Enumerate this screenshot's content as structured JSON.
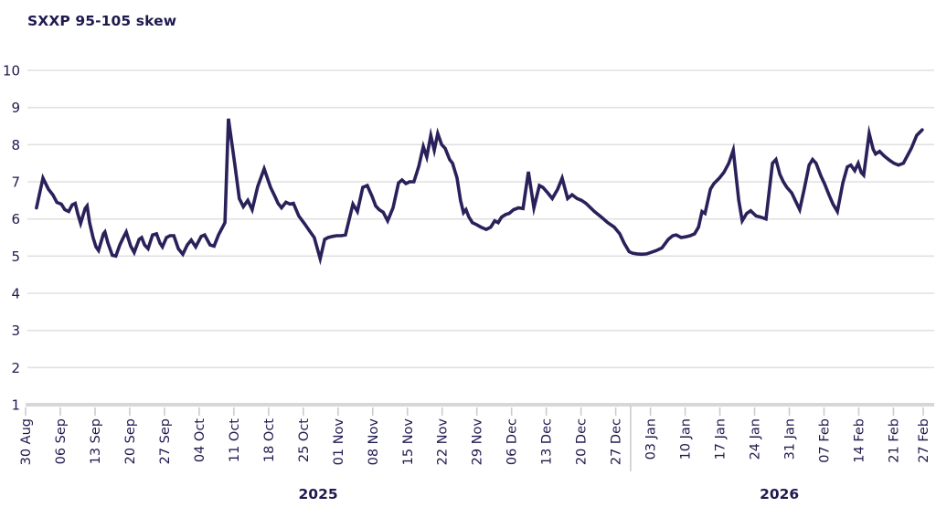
{
  "title": "SXXP 95-105 skew",
  "colors": {
    "line": "#29215A",
    "text": "#1F1A4E",
    "gridline": "#E1E1E1",
    "baseline": "#D7D7D7",
    "tick": "#CCCCCC"
  },
  "chart_data": {
    "type": "line",
    "title": "SXXP 95-105 skew",
    "series_name": "SXXP 95-105 skew",
    "legend": "none",
    "grid": "horizontal",
    "ylim": [
      1,
      10
    ],
    "ytick_labels": [
      "1",
      "2",
      "3",
      "4",
      "5",
      "6",
      "7",
      "8",
      "9",
      "10"
    ],
    "yticks": [
      1,
      2,
      3,
      4,
      5,
      6,
      7,
      8,
      9,
      10
    ],
    "x_unit": "days since 30 Aug 2025",
    "x_range_days": [
      0,
      181
    ],
    "x_tick_labels": [
      "30 Aug",
      "06 Sep",
      "13 Sep",
      "20 Sep",
      "27 Sep",
      "04 Oct",
      "11 Oct",
      "18 Oct",
      "25 Oct",
      "01 Nov",
      "08 Nov",
      "15 Nov",
      "22 Nov",
      "29 Nov",
      "06 Dec",
      "13 Dec",
      "20 Dec",
      "27 Dec",
      "03 Jan",
      "10 Jan",
      "17 Jan",
      "24 Jan",
      "31 Jan",
      "07 Feb",
      "14 Feb",
      "21 Feb",
      "27 Feb"
    ],
    "x_tick_days": [
      0,
      7,
      14,
      21,
      28,
      35,
      42,
      49,
      56,
      63,
      70,
      77,
      84,
      91,
      98,
      105,
      112,
      119,
      126,
      133,
      140,
      147,
      154,
      161,
      168,
      175,
      181
    ],
    "year_labels": [
      {
        "label": "2025",
        "day_center": 59
      },
      {
        "label": "2026",
        "day_center": 152
      }
    ],
    "year_divider_day": 122,
    "points": [
      [
        2.2,
        6.3
      ],
      [
        3.5,
        7.1
      ],
      [
        4.6,
        6.8
      ],
      [
        5.5,
        6.65
      ],
      [
        6.3,
        6.45
      ],
      [
        7.2,
        6.4
      ],
      [
        7.9,
        6.25
      ],
      [
        8.7,
        6.2
      ],
      [
        9.4,
        6.38
      ],
      [
        10,
        6.42
      ],
      [
        10.5,
        6.15
      ],
      [
        11.1,
        5.88
      ],
      [
        12,
        6.28
      ],
      [
        12.4,
        6.35
      ],
      [
        12.9,
        5.9
      ],
      [
        13.6,
        5.5
      ],
      [
        14.2,
        5.25
      ],
      [
        14.7,
        5.15
      ],
      [
        15.7,
        5.6
      ],
      [
        16,
        5.65
      ],
      [
        16.6,
        5.35
      ],
      [
        17.5,
        5.02
      ],
      [
        18.2,
        5.0
      ],
      [
        19,
        5.3
      ],
      [
        19.7,
        5.5
      ],
      [
        20.3,
        5.65
      ],
      [
        21.2,
        5.27
      ],
      [
        21.9,
        5.1
      ],
      [
        22.9,
        5.45
      ],
      [
        23.4,
        5.5
      ],
      [
        24,
        5.3
      ],
      [
        24.7,
        5.2
      ],
      [
        25.6,
        5.57
      ],
      [
        26.4,
        5.6
      ],
      [
        27.1,
        5.35
      ],
      [
        27.6,
        5.25
      ],
      [
        28.4,
        5.5
      ],
      [
        29.1,
        5.55
      ],
      [
        29.9,
        5.55
      ],
      [
        30.8,
        5.2
      ],
      [
        31.7,
        5.05
      ],
      [
        32.6,
        5.3
      ],
      [
        33.4,
        5.43
      ],
      [
        34.3,
        5.25
      ],
      [
        35.4,
        5.53
      ],
      [
        36.1,
        5.57
      ],
      [
        37.2,
        5.3
      ],
      [
        38,
        5.27
      ],
      [
        38.9,
        5.57
      ],
      [
        39.4,
        5.7
      ],
      [
        40.2,
        5.9
      ],
      [
        40.9,
        8.7
      ],
      [
        42.2,
        7.45
      ],
      [
        43.1,
        6.55
      ],
      [
        43.9,
        6.33
      ],
      [
        44.8,
        6.5
      ],
      [
        45.7,
        6.25
      ],
      [
        46.8,
        6.87
      ],
      [
        48.1,
        7.35
      ],
      [
        49.4,
        6.85
      ],
      [
        50.3,
        6.6
      ],
      [
        50.9,
        6.42
      ],
      [
        51.6,
        6.3
      ],
      [
        52.5,
        6.45
      ],
      [
        53.3,
        6.4
      ],
      [
        54,
        6.42
      ],
      [
        55.1,
        6.08
      ],
      [
        56.2,
        5.88
      ],
      [
        57.3,
        5.67
      ],
      [
        58.2,
        5.5
      ],
      [
        59.4,
        4.93
      ],
      [
        60.3,
        5.45
      ],
      [
        61,
        5.5
      ],
      [
        61.9,
        5.53
      ],
      [
        62.7,
        5.55
      ],
      [
        63.6,
        5.55
      ],
      [
        64.5,
        5.57
      ],
      [
        66,
        6.4
      ],
      [
        66.9,
        6.2
      ],
      [
        68,
        6.85
      ],
      [
        68.9,
        6.9
      ],
      [
        69.9,
        6.6
      ],
      [
        70.6,
        6.35
      ],
      [
        71.3,
        6.25
      ],
      [
        72.1,
        6.18
      ],
      [
        73,
        5.95
      ],
      [
        74.1,
        6.3
      ],
      [
        75.2,
        6.97
      ],
      [
        75.9,
        7.05
      ],
      [
        76.7,
        6.95
      ],
      [
        77.4,
        7.0
      ],
      [
        78.3,
        7.0
      ],
      [
        79.3,
        7.42
      ],
      [
        80.2,
        7.95
      ],
      [
        80.9,
        7.67
      ],
      [
        81.7,
        8.25
      ],
      [
        82.4,
        7.85
      ],
      [
        83.1,
        8.3
      ],
      [
        83.9,
        8.0
      ],
      [
        84.6,
        7.9
      ],
      [
        85.5,
        7.6
      ],
      [
        86.1,
        7.5
      ],
      [
        87,
        7.1
      ],
      [
        87.7,
        6.5
      ],
      [
        88.3,
        6.17
      ],
      [
        88.8,
        6.25
      ],
      [
        89.4,
        6.05
      ],
      [
        90.1,
        5.9
      ],
      [
        90.9,
        5.85
      ],
      [
        91.8,
        5.78
      ],
      [
        92.9,
        5.72
      ],
      [
        93.8,
        5.78
      ],
      [
        94.6,
        5.95
      ],
      [
        95.3,
        5.9
      ],
      [
        96,
        6.05
      ],
      [
        96.8,
        6.12
      ],
      [
        97.5,
        6.15
      ],
      [
        98.4,
        6.25
      ],
      [
        99.4,
        6.3
      ],
      [
        100.3,
        6.28
      ],
      [
        101.4,
        7.27
      ],
      [
        102.5,
        6.3
      ],
      [
        103.6,
        6.9
      ],
      [
        104.3,
        6.85
      ],
      [
        105.3,
        6.7
      ],
      [
        106.2,
        6.55
      ],
      [
        107.3,
        6.8
      ],
      [
        108.2,
        7.1
      ],
      [
        109.3,
        6.55
      ],
      [
        110.2,
        6.65
      ],
      [
        111.2,
        6.55
      ],
      [
        112.1,
        6.5
      ],
      [
        113,
        6.42
      ],
      [
        114.7,
        6.2
      ],
      [
        116.1,
        6.05
      ],
      [
        117.4,
        5.9
      ],
      [
        118.7,
        5.78
      ],
      [
        119.8,
        5.6
      ],
      [
        120.7,
        5.35
      ],
      [
        121.7,
        5.12
      ],
      [
        122.4,
        5.08
      ],
      [
        123.3,
        5.06
      ],
      [
        124.2,
        5.05
      ],
      [
        125.2,
        5.06
      ],
      [
        126.1,
        5.1
      ],
      [
        127.2,
        5.15
      ],
      [
        128.3,
        5.22
      ],
      [
        129.6,
        5.45
      ],
      [
        130.5,
        5.55
      ],
      [
        131.2,
        5.57
      ],
      [
        132.2,
        5.5
      ],
      [
        133.1,
        5.52
      ],
      [
        134,
        5.55
      ],
      [
        134.9,
        5.6
      ],
      [
        135.7,
        5.78
      ],
      [
        136.4,
        6.2
      ],
      [
        137,
        6.15
      ],
      [
        138.1,
        6.8
      ],
      [
        138.8,
        6.95
      ],
      [
        139.9,
        7.1
      ],
      [
        140.8,
        7.25
      ],
      [
        141.8,
        7.5
      ],
      [
        142.7,
        7.85
      ],
      [
        143.8,
        6.5
      ],
      [
        144.5,
        5.95
      ],
      [
        145.4,
        6.15
      ],
      [
        146.2,
        6.22
      ],
      [
        147.3,
        6.08
      ],
      [
        148.2,
        6.05
      ],
      [
        149.3,
        6.0
      ],
      [
        150.6,
        7.5
      ],
      [
        151.3,
        7.6
      ],
      [
        152.1,
        7.2
      ],
      [
        152.8,
        7.0
      ],
      [
        153.5,
        6.85
      ],
      [
        154.5,
        6.7
      ],
      [
        155.2,
        6.5
      ],
      [
        156.1,
        6.25
      ],
      [
        157,
        6.8
      ],
      [
        158,
        7.45
      ],
      [
        158.7,
        7.6
      ],
      [
        159.4,
        7.5
      ],
      [
        160.4,
        7.15
      ],
      [
        161.1,
        6.95
      ],
      [
        162,
        6.65
      ],
      [
        162.8,
        6.4
      ],
      [
        163.7,
        6.2
      ],
      [
        164.8,
        6.97
      ],
      [
        165.7,
        7.4
      ],
      [
        166.4,
        7.45
      ],
      [
        167.2,
        7.3
      ],
      [
        167.9,
        7.5
      ],
      [
        168.5,
        7.25
      ],
      [
        169,
        7.18
      ],
      [
        170.1,
        8.3
      ],
      [
        170.9,
        7.88
      ],
      [
        171.4,
        7.75
      ],
      [
        172.2,
        7.82
      ],
      [
        173.1,
        7.7
      ],
      [
        174.2,
        7.58
      ],
      [
        175.1,
        7.5
      ],
      [
        176,
        7.45
      ],
      [
        177,
        7.5
      ],
      [
        178.6,
        7.9
      ],
      [
        179.7,
        8.25
      ],
      [
        180.8,
        8.4
      ]
    ]
  }
}
